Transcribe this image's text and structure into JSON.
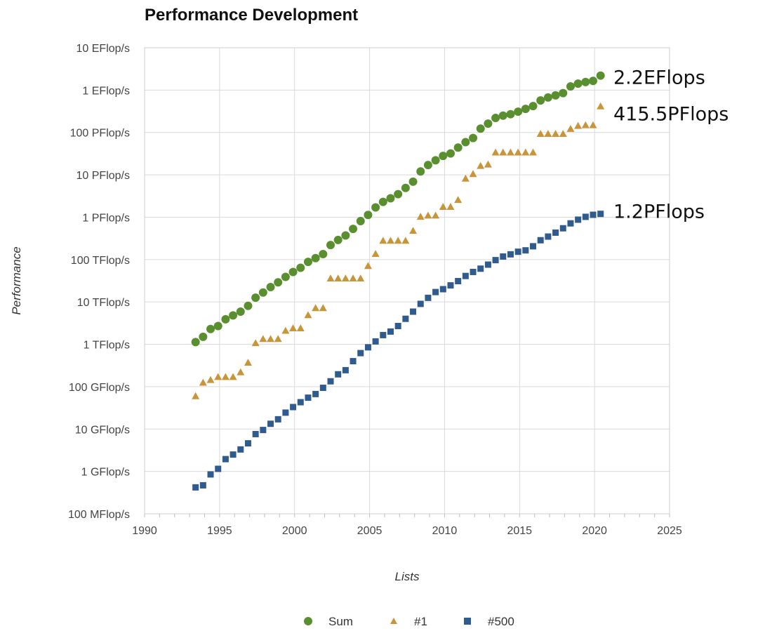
{
  "chart_data": {
    "type": "scatter",
    "title": "Performance Development",
    "xlabel": "Lists",
    "ylabel": "Performance",
    "xlim": [
      1990,
      2025
    ],
    "x_ticks": [
      "1990",
      "1995",
      "2000",
      "2005",
      "2010",
      "2015",
      "2020",
      "2025"
    ],
    "y_scale": "log",
    "y_unit": "Flop/s",
    "ylim": [
      100000000.0,
      1e+19
    ],
    "y_ticks": [
      {
        "value": 1e+19,
        "label": "10 EFlop/s"
      },
      {
        "value": 1e+18,
        "label": "1 EFlop/s"
      },
      {
        "value": 1e+17,
        "label": "100 PFlop/s"
      },
      {
        "value": 1e+16,
        "label": "10 PFlop/s"
      },
      {
        "value": 1000000000000000.0,
        "label": "1 PFlop/s"
      },
      {
        "value": 100000000000000.0,
        "label": "100 TFlop/s"
      },
      {
        "value": 10000000000000.0,
        "label": "10 TFlop/s"
      },
      {
        "value": 1000000000000.0,
        "label": "1 TFlop/s"
      },
      {
        "value": 100000000000.0,
        "label": "100 GFlop/s"
      },
      {
        "value": 10000000000.0,
        "label": "10 GFlop/s"
      },
      {
        "value": 1000000000.0,
        "label": "1 GFlop/s"
      },
      {
        "value": 100000000.0,
        "label": "100 MFlop/s"
      }
    ],
    "grid": true,
    "legend_position": "bottom",
    "annotations": [
      {
        "text": "2.2EFlops",
        "series": "Sum"
      },
      {
        "text": "415.5PFlops",
        "series": "#1"
      },
      {
        "text": "1.2PFlops",
        "series": "#500"
      }
    ],
    "series": [
      {
        "name": "Sum",
        "marker": "circle",
        "color": "#5a8f2f",
        "points": [
          [
            1993.4,
            1130000000000.0
          ],
          [
            1993.9,
            1500000000000.0
          ],
          [
            1994.4,
            2300000000000.0
          ],
          [
            1994.9,
            2700000000000.0
          ],
          [
            1995.4,
            3900000000000.0
          ],
          [
            1995.9,
            4800000000000.0
          ],
          [
            1996.4,
            5900000000000.0
          ],
          [
            1996.9,
            8100000000000.0
          ],
          [
            1997.4,
            12600000000000.0
          ],
          [
            1997.9,
            16700000000000.0
          ],
          [
            1998.4,
            22400000000000.0
          ],
          [
            1998.9,
            29000000000000.0
          ],
          [
            1999.4,
            39000000000000.0
          ],
          [
            1999.9,
            51000000000000.0
          ],
          [
            2000.4,
            64000000000000.0
          ],
          [
            2000.9,
            88000000000000.0
          ],
          [
            2001.4,
            108000000000000.0
          ],
          [
            2001.9,
            135000000000000.0
          ],
          [
            2002.4,
            220000000000000.0
          ],
          [
            2002.9,
            290000000000000.0
          ],
          [
            2003.4,
            370000000000000.0
          ],
          [
            2003.9,
            530000000000000.0
          ],
          [
            2004.4,
            810000000000000.0
          ],
          [
            2004.9,
            1130000000000000.0
          ],
          [
            2005.4,
            1700000000000000.0
          ],
          [
            2005.9,
            2300000000000000.0
          ],
          [
            2006.4,
            2800000000000000.0
          ],
          [
            2006.9,
            3500000000000000.0
          ],
          [
            2007.4,
            4900000000000000.0
          ],
          [
            2007.9,
            6900000000000000.0
          ],
          [
            2008.4,
            1.2e+16
          ],
          [
            2008.9,
            1.7e+16
          ],
          [
            2009.4,
            2.2e+16
          ],
          [
            2009.9,
            2.8e+16
          ],
          [
            2010.4,
            3.2e+16
          ],
          [
            2010.9,
            4.4e+16
          ],
          [
            2011.4,
            5.9e+16
          ],
          [
            2011.9,
            7.4e+16
          ],
          [
            2012.4,
            1.23e+17
          ],
          [
            2012.9,
            1.62e+17
          ],
          [
            2013.4,
            2.2e+17
          ],
          [
            2013.9,
            2.5e+17
          ],
          [
            2014.4,
            2.7e+17
          ],
          [
            2014.9,
            3.1e+17
          ],
          [
            2015.4,
            3.6e+17
          ],
          [
            2015.9,
            4.2e+17
          ],
          [
            2016.4,
            5.7e+17
          ],
          [
            2016.9,
            6.7e+17
          ],
          [
            2017.4,
            7.5e+17
          ],
          [
            2017.9,
            8.5e+17
          ],
          [
            2018.4,
            1.22e+18
          ],
          [
            2018.9,
            1.42e+18
          ],
          [
            2019.4,
            1.55e+18
          ],
          [
            2019.9,
            1.65e+18
          ],
          [
            2020.4,
            2.2e+18
          ]
        ]
      },
      {
        "name": "#1",
        "marker": "triangle",
        "color": "#c9953a",
        "points": [
          [
            1993.4,
            60000000000.0
          ],
          [
            1993.9,
            125000000000.0
          ],
          [
            1994.4,
            145000000000.0
          ],
          [
            1994.9,
            170000000000.0
          ],
          [
            1995.4,
            170000000000.0
          ],
          [
            1995.9,
            170000000000.0
          ],
          [
            1996.4,
            220000000000.0
          ],
          [
            1996.9,
            370000000000.0
          ],
          [
            1997.4,
            1070000000000.0
          ],
          [
            1997.9,
            1340000000000.0
          ],
          [
            1998.4,
            1340000000000.0
          ],
          [
            1998.9,
            1340000000000.0
          ],
          [
            1999.4,
            2100000000000.0
          ],
          [
            1999.9,
            2400000000000.0
          ],
          [
            2000.4,
            2400000000000.0
          ],
          [
            2000.9,
            4900000000000.0
          ],
          [
            2001.4,
            7200000000000.0
          ],
          [
            2001.9,
            7200000000000.0
          ],
          [
            2002.4,
            36000000000000.0
          ],
          [
            2002.9,
            36000000000000.0
          ],
          [
            2003.4,
            36000000000000.0
          ],
          [
            2003.9,
            36000000000000.0
          ],
          [
            2004.4,
            36000000000000.0
          ],
          [
            2004.9,
            71000000000000.0
          ],
          [
            2005.4,
            137000000000000.0
          ],
          [
            2005.9,
            280000000000000.0
          ],
          [
            2006.4,
            280000000000000.0
          ],
          [
            2006.9,
            280000000000000.0
          ],
          [
            2007.4,
            280000000000000.0
          ],
          [
            2007.9,
            480000000000000.0
          ],
          [
            2008.4,
            1030000000000000.0
          ],
          [
            2008.9,
            1100000000000000.0
          ],
          [
            2009.4,
            1100000000000000.0
          ],
          [
            2009.9,
            1760000000000000.0
          ],
          [
            2010.4,
            1760000000000000.0
          ],
          [
            2010.9,
            2570000000000000.0
          ],
          [
            2011.4,
            8200000000000000.0
          ],
          [
            2011.9,
            1.05e+16
          ],
          [
            2012.4,
            1.63e+16
          ],
          [
            2012.9,
            1.76e+16
          ],
          [
            2013.4,
            3.39e+16
          ],
          [
            2013.9,
            3.39e+16
          ],
          [
            2014.4,
            3.39e+16
          ],
          [
            2014.9,
            3.39e+16
          ],
          [
            2015.4,
            3.39e+16
          ],
          [
            2015.9,
            3.39e+16
          ],
          [
            2016.4,
            9.3e+16
          ],
          [
            2016.9,
            9.3e+16
          ],
          [
            2017.4,
            9.3e+16
          ],
          [
            2017.9,
            9.3e+16
          ],
          [
            2018.4,
            1.22e+17
          ],
          [
            2018.9,
            1.44e+17
          ],
          [
            2019.4,
            1.49e+17
          ],
          [
            2019.9,
            1.49e+17
          ],
          [
            2020.4,
            4.155e+17
          ]
        ]
      },
      {
        "name": "#500",
        "marker": "square",
        "color": "#2f5b8f",
        "points": [
          [
            1993.4,
            420000000.0
          ],
          [
            1993.9,
            470000000.0
          ],
          [
            1994.4,
            850000000.0
          ],
          [
            1994.9,
            1150000000.0
          ],
          [
            1995.4,
            1950000000.0
          ],
          [
            1995.9,
            2500000000.0
          ],
          [
            1996.4,
            3300000000.0
          ],
          [
            1996.9,
            4600000000.0
          ],
          [
            1997.4,
            7600000000.0
          ],
          [
            1997.9,
            9500000000.0
          ],
          [
            1998.4,
            13300000000.0
          ],
          [
            1998.9,
            17000000000.0
          ],
          [
            1999.4,
            24400000000.0
          ],
          [
            1999.9,
            33000000000.0
          ],
          [
            2000.4,
            43000000000.0
          ],
          [
            2000.9,
            55000000000.0
          ],
          [
            2001.4,
            67000000000.0
          ],
          [
            2001.9,
            94000000000.0
          ],
          [
            2002.4,
            134000000000.0
          ],
          [
            2002.9,
            196000000000.0
          ],
          [
            2003.4,
            245000000000.0
          ],
          [
            2003.9,
            400000000000.0
          ],
          [
            2004.4,
            620000000000.0
          ],
          [
            2004.9,
            850000000000.0
          ],
          [
            2005.4,
            1170000000000.0
          ],
          [
            2005.9,
            1650000000000.0
          ],
          [
            2006.4,
            2000000000000.0
          ],
          [
            2006.9,
            2700000000000.0
          ],
          [
            2007.4,
            4000000000000.0
          ],
          [
            2007.9,
            5900000000000.0
          ],
          [
            2008.4,
            9000000000000.0
          ],
          [
            2008.9,
            12500000000000.0
          ],
          [
            2009.4,
            17100000000000.0
          ],
          [
            2009.9,
            20000000000000.0
          ],
          [
            2010.4,
            24600000000000.0
          ],
          [
            2010.9,
            31000000000000.0
          ],
          [
            2011.4,
            41000000000000.0
          ],
          [
            2011.9,
            51000000000000.0
          ],
          [
            2012.4,
            61000000000000.0
          ],
          [
            2012.9,
            76000000000000.0
          ],
          [
            2013.4,
            97000000000000.0
          ],
          [
            2013.9,
            118000000000000.0
          ],
          [
            2014.4,
            133000000000000.0
          ],
          [
            2014.9,
            153000000000000.0
          ],
          [
            2015.4,
            165000000000000.0
          ],
          [
            2015.9,
            206000000000000.0
          ],
          [
            2016.4,
            286000000000000.0
          ],
          [
            2016.9,
            349000000000000.0
          ],
          [
            2017.4,
            432000000000000.0
          ],
          [
            2017.9,
            548000000000000.0
          ],
          [
            2018.4,
            715000000000000.0
          ],
          [
            2018.9,
            874000000000000.0
          ],
          [
            2019.4,
            1020000000000000.0
          ],
          [
            2019.9,
            1140000000000000.0
          ],
          [
            2020.4,
            1200000000000000.0
          ]
        ]
      }
    ]
  }
}
